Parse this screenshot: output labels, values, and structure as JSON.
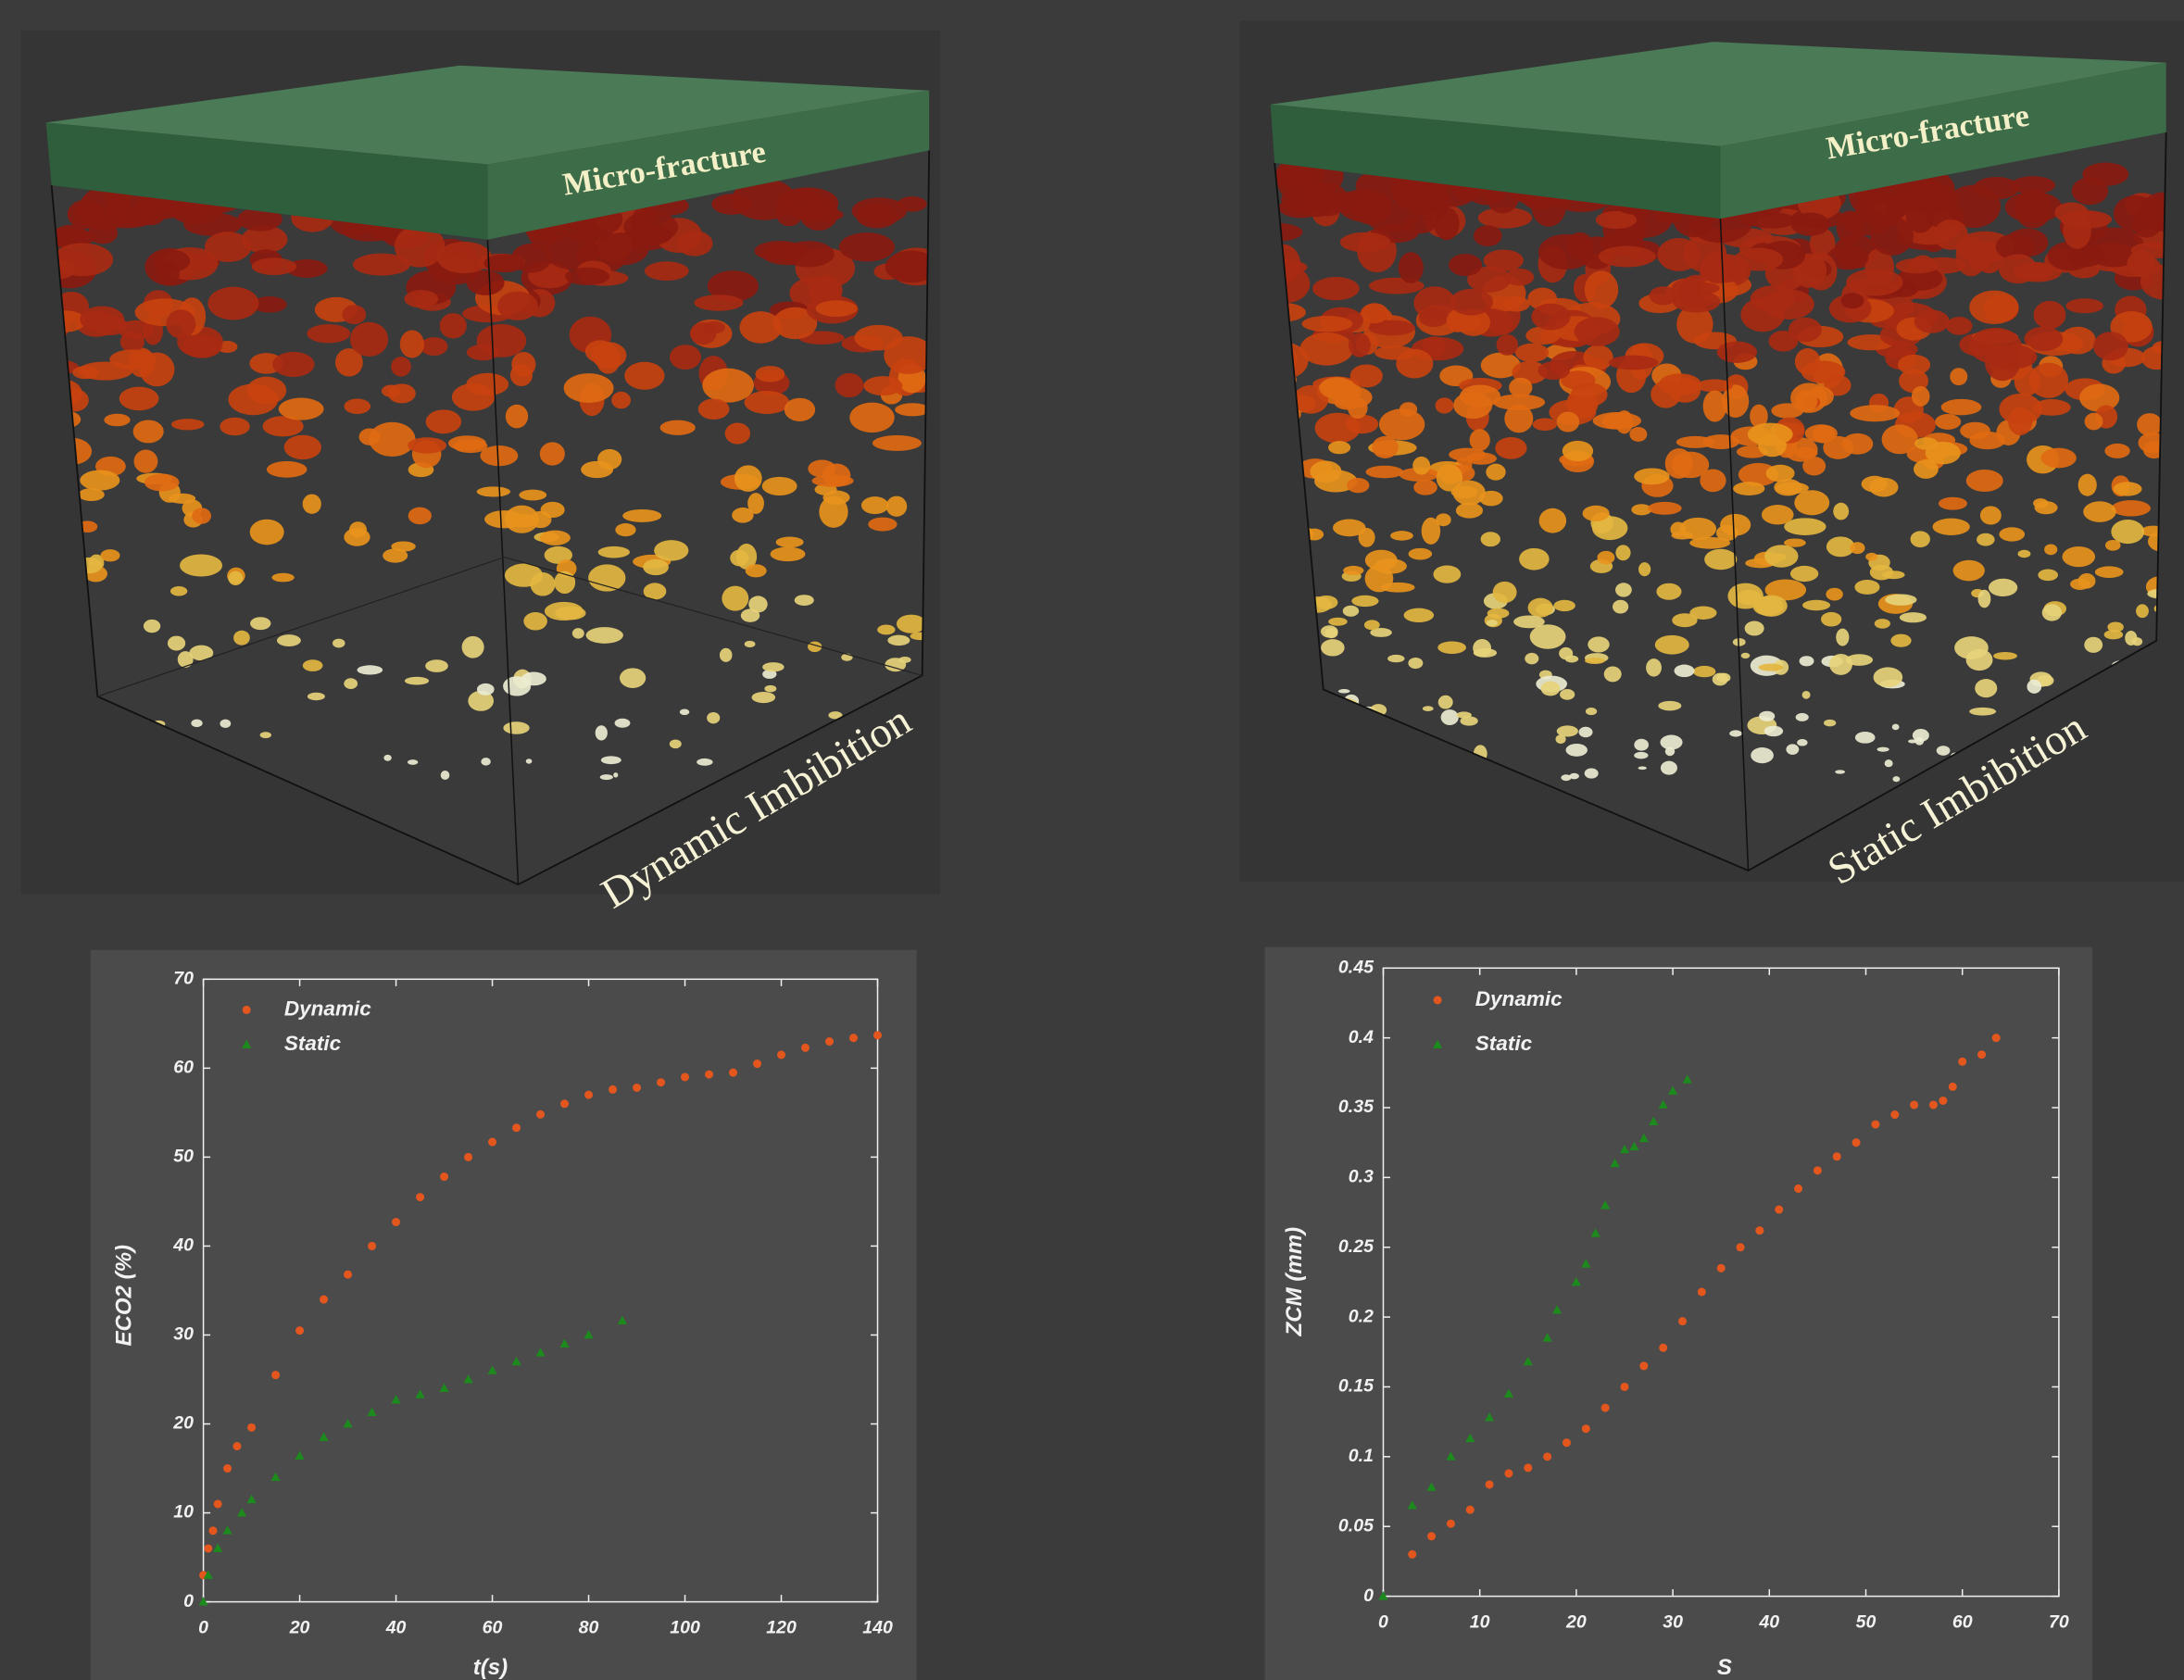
{
  "panels": [
    {
      "top_label": "Micro-fracture",
      "side_label": "Dynamic Imbibition"
    },
    {
      "top_label": "Micro-fracture",
      "side_label": "Static Imbibition"
    }
  ],
  "chart_data": [
    {
      "type": "scatter",
      "xlabel": "t(s)",
      "ylabel": "ECO2 (%)",
      "xlim": [
        0,
        140
      ],
      "ylim": [
        0,
        70
      ],
      "xticks": [
        0,
        20,
        40,
        60,
        80,
        100,
        120,
        140
      ],
      "yticks": [
        0,
        10,
        20,
        30,
        40,
        50,
        60,
        70
      ],
      "series": [
        {
          "name": "Dynamic",
          "color": "#e3561e",
          "marker": "circle",
          "x": [
            0,
            1,
            2,
            3,
            5,
            7,
            10,
            15,
            20,
            25,
            30,
            35,
            40,
            45,
            50,
            55,
            60,
            65,
            70,
            75,
            80,
            85,
            90,
            95,
            100,
            105,
            110,
            115,
            120,
            125,
            130,
            135,
            140
          ],
          "values": [
            3,
            6,
            8,
            11,
            15,
            17.5,
            19.6,
            25.5,
            30.5,
            34,
            36.8,
            40,
            42.7,
            45.5,
            47.8,
            50,
            51.7,
            53.3,
            54.8,
            56,
            57,
            57.6,
            57.8,
            58.4,
            59,
            59.3,
            59.5,
            60.5,
            61.5,
            62.3,
            63,
            63.4,
            63.7
          ]
        },
        {
          "name": "Static",
          "color": "#1c8a1c",
          "marker": "triangle",
          "x": [
            0,
            1,
            3,
            5,
            8,
            10,
            15,
            20,
            25,
            30,
            35,
            40,
            45,
            50,
            55,
            60,
            65,
            70,
            75,
            80,
            87
          ],
          "values": [
            0,
            3,
            6,
            8,
            10,
            11.5,
            14,
            16.4,
            18.5,
            20,
            21.3,
            22.7,
            23.3,
            24,
            25,
            26,
            27,
            28,
            29,
            30,
            31.6
          ]
        }
      ]
    },
    {
      "type": "scatter",
      "xlabel": "S",
      "ylabel": "ZCM (mm)",
      "xlim": [
        0,
        70
      ],
      "ylim": [
        0,
        0.45
      ],
      "xticks": [
        0,
        10,
        20,
        30,
        40,
        50,
        60,
        70
      ],
      "yticks": [
        0,
        0.05,
        0.1,
        0.15,
        0.2,
        0.25,
        0.3,
        0.35,
        0.4,
        0.45
      ],
      "series": [
        {
          "name": "Dynamic",
          "color": "#e3561e",
          "marker": "circle",
          "x": [
            3,
            5,
            7,
            9,
            11,
            13,
            15,
            17,
            19,
            21,
            23,
            25,
            27,
            29,
            31,
            33,
            35,
            37,
            39,
            41,
            43,
            45,
            47,
            49,
            51,
            53,
            55,
            57,
            58,
            59,
            60,
            62,
            63.5
          ],
          "values": [
            0.03,
            0.043,
            0.052,
            0.062,
            0.08,
            0.088,
            0.092,
            0.1,
            0.11,
            0.12,
            0.135,
            0.15,
            0.165,
            0.178,
            0.197,
            0.218,
            0.235,
            0.25,
            0.262,
            0.277,
            0.292,
            0.305,
            0.315,
            0.325,
            0.338,
            0.345,
            0.352,
            0.352,
            0.355,
            0.365,
            0.383,
            0.388,
            0.4
          ]
        },
        {
          "name": "Static",
          "color": "#1c8a1c",
          "marker": "triangle",
          "x": [
            0,
            3,
            5,
            7,
            9,
            11,
            13,
            15,
            17,
            18,
            20,
            21,
            22,
            23,
            24,
            25,
            26,
            27,
            28,
            29,
            30,
            31.5
          ],
          "values": [
            0,
            0.065,
            0.078,
            0.1,
            0.113,
            0.128,
            0.145,
            0.168,
            0.185,
            0.205,
            0.225,
            0.238,
            0.26,
            0.28,
            0.31,
            0.32,
            0.322,
            0.328,
            0.34,
            0.352,
            0.362,
            0.37
          ]
        }
      ]
    }
  ]
}
